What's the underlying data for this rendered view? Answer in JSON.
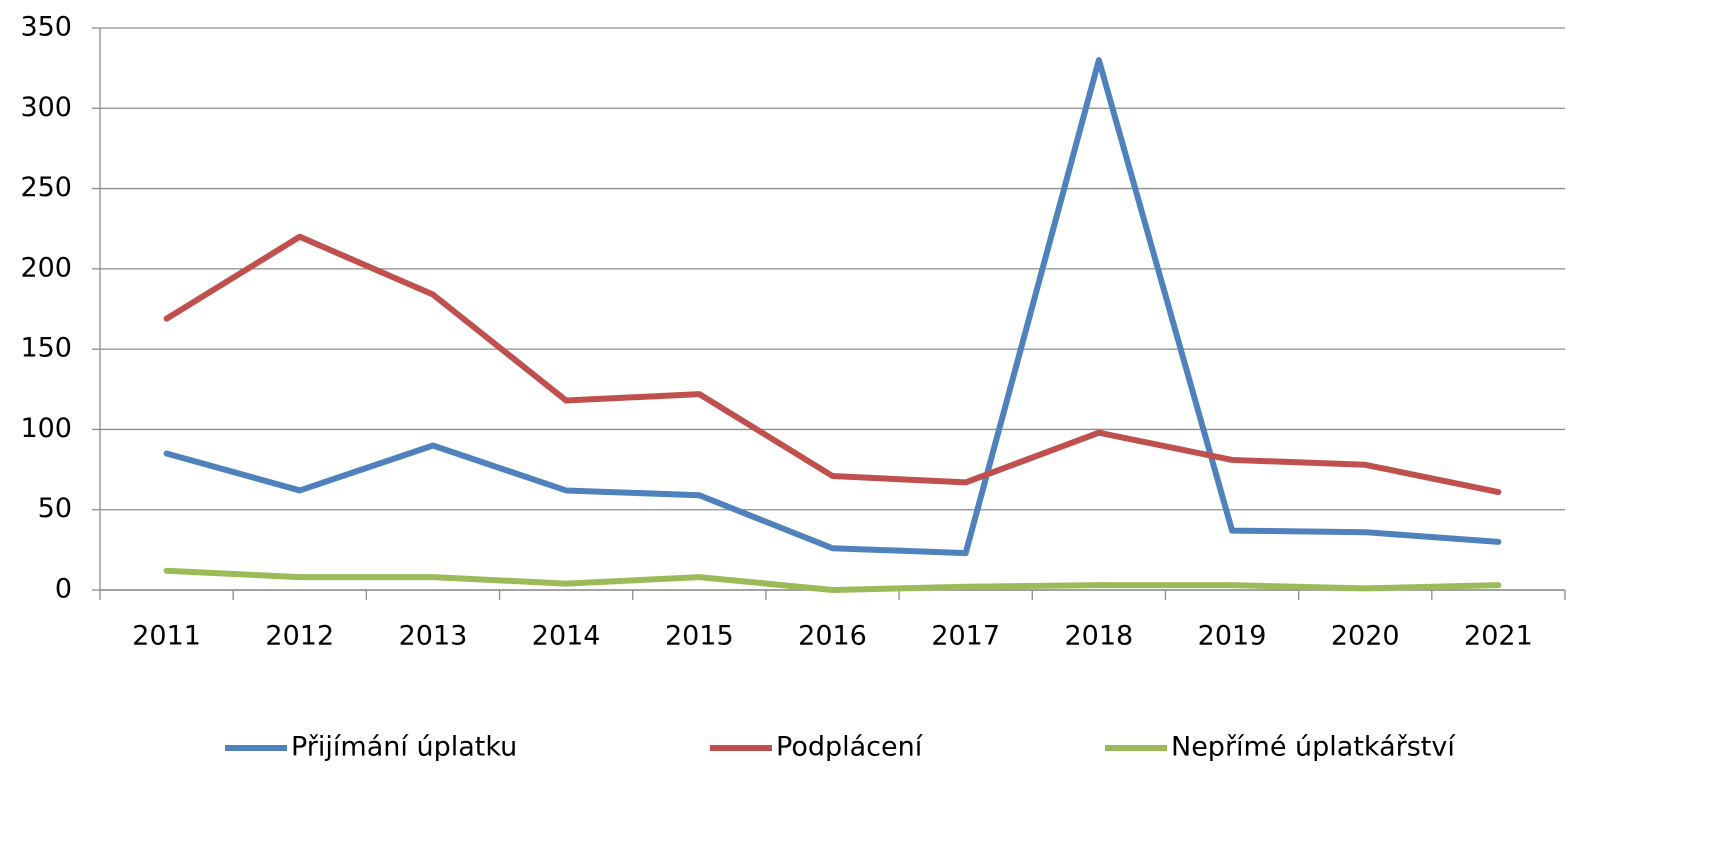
{
  "chart_data": {
    "type": "line",
    "categories": [
      "2011",
      "2012",
      "2013",
      "2014",
      "2015",
      "2016",
      "2017",
      "2018",
      "2019",
      "2020",
      "2021"
    ],
    "series": [
      {
        "name": "Přijímání úplatku",
        "color": "#4f81bd",
        "values": [
          85,
          62,
          90,
          62,
          59,
          26,
          23,
          330,
          37,
          36,
          30
        ]
      },
      {
        "name": "Podplácení",
        "color": "#c0504d",
        "values": [
          169,
          220,
          184,
          118,
          122,
          71,
          67,
          98,
          81,
          78,
          61
        ]
      },
      {
        "name": "Nepřímé úplatkářství",
        "color": "#9bbb59",
        "values": [
          12,
          8,
          8,
          4,
          8,
          0,
          2,
          3,
          3,
          1,
          3
        ]
      }
    ],
    "ylim": [
      0,
      350
    ],
    "yticks": [
      0,
      50,
      100,
      150,
      200,
      250,
      300,
      350
    ],
    "grid": true,
    "legend": "bottom"
  }
}
